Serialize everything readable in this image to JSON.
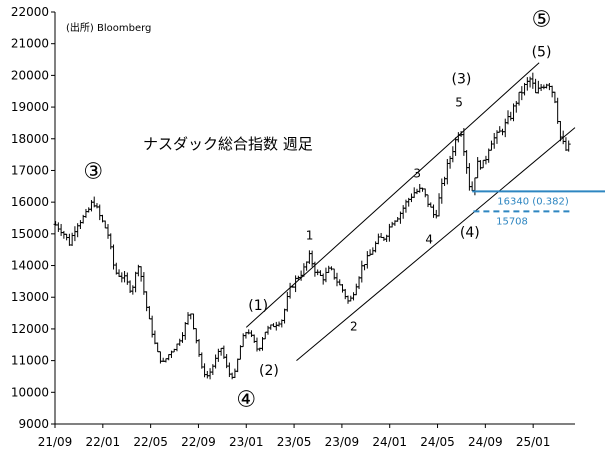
{
  "source_note": "(出所) Bloomberg",
  "chart_data": {
    "type": "bar",
    "title": "ナスダック総合指数 週足",
    "xlabel": "",
    "ylabel": "",
    "ylim": [
      9000,
      22000
    ],
    "y_ticks": [
      "22000",
      "21000",
      "20000",
      "19000",
      "18000",
      "17000",
      "16000",
      "15000",
      "14000",
      "13000",
      "12000",
      "11000",
      "10000",
      "9000"
    ],
    "x_ticks": [
      "21/09",
      "22/01",
      "22/05",
      "22/09",
      "23/01",
      "23/05",
      "23/09",
      "24/01",
      "24/05",
      "24/09",
      "25/01"
    ],
    "x_tick_months": [
      0,
      4,
      8,
      12,
      16,
      20,
      24,
      28,
      32,
      36,
      40
    ],
    "x_range_months": [
      0,
      43.5
    ],
    "anchors": [
      {
        "m": 0.0,
        "v": 15300
      },
      {
        "m": 0.6,
        "v": 15100
      },
      {
        "m": 1.2,
        "v": 14700
      },
      {
        "m": 1.8,
        "v": 15300
      },
      {
        "m": 2.6,
        "v": 15600
      },
      {
        "m": 3.2,
        "v": 16050
      },
      {
        "m": 3.8,
        "v": 15500
      },
      {
        "m": 4.4,
        "v": 15050
      },
      {
        "m": 5.0,
        "v": 13800
      },
      {
        "m": 5.8,
        "v": 13600
      },
      {
        "m": 6.4,
        "v": 13200
      },
      {
        "m": 7.0,
        "v": 14100
      },
      {
        "m": 7.8,
        "v": 12400
      },
      {
        "m": 8.5,
        "v": 11300
      },
      {
        "m": 9.0,
        "v": 10900
      },
      {
        "m": 9.7,
        "v": 11300
      },
      {
        "m": 10.2,
        "v": 11500
      },
      {
        "m": 10.7,
        "v": 11900
      },
      {
        "m": 11.3,
        "v": 12600
      },
      {
        "m": 11.8,
        "v": 11700
      },
      {
        "m": 12.3,
        "v": 10700
      },
      {
        "m": 12.8,
        "v": 10500
      },
      {
        "m": 13.4,
        "v": 11000
      },
      {
        "m": 13.9,
        "v": 11400
      },
      {
        "m": 14.5,
        "v": 10600
      },
      {
        "m": 15.0,
        "v": 10500
      },
      {
        "m": 15.6,
        "v": 11600
      },
      {
        "m": 16.1,
        "v": 12000
      },
      {
        "m": 16.6,
        "v": 11600
      },
      {
        "m": 17.0,
        "v": 11300
      },
      {
        "m": 17.5,
        "v": 11900
      },
      {
        "m": 18.2,
        "v": 12100
      },
      {
        "m": 19.0,
        "v": 12300
      },
      {
        "m": 19.6,
        "v": 13200
      },
      {
        "m": 20.2,
        "v": 13600
      },
      {
        "m": 20.7,
        "v": 13800
      },
      {
        "m": 21.3,
        "v": 14300
      },
      {
        "m": 21.8,
        "v": 13800
      },
      {
        "m": 22.4,
        "v": 13600
      },
      {
        "m": 23.0,
        "v": 13900
      },
      {
        "m": 23.6,
        "v": 13500
      },
      {
        "m": 24.1,
        "v": 13200
      },
      {
        "m": 24.6,
        "v": 12800
      },
      {
        "m": 25.1,
        "v": 13300
      },
      {
        "m": 25.7,
        "v": 14000
      },
      {
        "m": 26.3,
        "v": 14300
      },
      {
        "m": 27.0,
        "v": 14800
      },
      {
        "m": 27.6,
        "v": 14900
      },
      {
        "m": 28.2,
        "v": 15400
      },
      {
        "m": 28.8,
        "v": 15600
      },
      {
        "m": 29.4,
        "v": 16000
      },
      {
        "m": 30.0,
        "v": 16300
      },
      {
        "m": 30.7,
        "v": 16400
      },
      {
        "m": 31.3,
        "v": 15900
      },
      {
        "m": 31.8,
        "v": 15500
      },
      {
        "m": 32.3,
        "v": 16400
      },
      {
        "m": 32.8,
        "v": 17100
      },
      {
        "m": 33.3,
        "v": 17700
      },
      {
        "m": 33.9,
        "v": 18400
      },
      {
        "m": 34.3,
        "v": 17500
      },
      {
        "m": 34.8,
        "v": 16200
      },
      {
        "m": 35.3,
        "v": 17200
      },
      {
        "m": 35.9,
        "v": 17200
      },
      {
        "m": 36.4,
        "v": 17900
      },
      {
        "m": 37.0,
        "v": 18100
      },
      {
        "m": 37.6,
        "v": 18400
      },
      {
        "m": 38.1,
        "v": 18700
      },
      {
        "m": 38.6,
        "v": 19200
      },
      {
        "m": 39.2,
        "v": 19600
      },
      {
        "m": 39.8,
        "v": 19900
      },
      {
        "m": 40.2,
        "v": 19400
      },
      {
        "m": 40.8,
        "v": 19700
      },
      {
        "m": 41.3,
        "v": 19800
      },
      {
        "m": 41.8,
        "v": 19300
      },
      {
        "m": 42.3,
        "v": 18000
      },
      {
        "m": 42.8,
        "v": 17600
      },
      {
        "m": 43.2,
        "v": 17900
      }
    ],
    "channel_lines": [
      {
        "name": "upper",
        "from": {
          "m": 16.0,
          "v": 12050
        },
        "to": {
          "m": 40.5,
          "v": 20400
        }
      },
      {
        "name": "lower",
        "from": {
          "m": 20.2,
          "v": 11000
        },
        "to": {
          "m": 43.5,
          "v": 18350
        }
      }
    ],
    "levels": [
      {
        "label": "16340 (0.382)",
        "value": 16340,
        "style": "solid",
        "color": "#2e86c1"
      },
      {
        "label": "15708",
        "value": 15708,
        "style": "dashed",
        "color": "#2e86c1"
      }
    ],
    "wave_labels": [
      {
        "text": "③",
        "m": 3.2,
        "v": 16750,
        "kind": "circled"
      },
      {
        "text": "④",
        "m": 16.0,
        "v": 9550,
        "kind": "circled"
      },
      {
        "text": "⑤",
        "m": 40.7,
        "v": 21550,
        "kind": "circled"
      },
      {
        "text": "(1)",
        "m": 17.0,
        "v": 12600,
        "kind": "paren"
      },
      {
        "text": "(2)",
        "m": 17.9,
        "v": 10550,
        "kind": "paren"
      },
      {
        "text": "(3)",
        "m": 34.0,
        "v": 19750,
        "kind": "paren"
      },
      {
        "text": "(4)",
        "m": 34.7,
        "v": 14900,
        "kind": "paren"
      },
      {
        "text": "(5)",
        "m": 40.7,
        "v": 20600,
        "kind": "paren"
      },
      {
        "text": "1",
        "m": 21.3,
        "v": 14820,
        "kind": "small"
      },
      {
        "text": "2",
        "m": 25.0,
        "v": 11950,
        "kind": "small"
      },
      {
        "text": "3",
        "m": 30.3,
        "v": 16780,
        "kind": "small"
      },
      {
        "text": "4",
        "m": 31.3,
        "v": 14700,
        "kind": "small"
      },
      {
        "text": "5",
        "m": 33.8,
        "v": 19020,
        "kind": "small"
      }
    ],
    "grid": false,
    "legend": "none"
  }
}
